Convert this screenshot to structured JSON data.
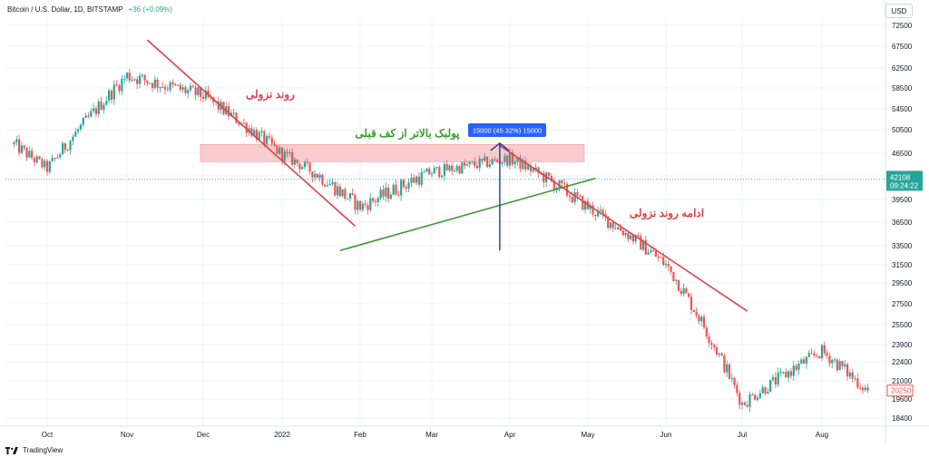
{
  "header": {
    "symbol": "Bitcoin / U.S. Dollar, 1D, BITSTAMP",
    "change": "+36 (+0.09%)"
  },
  "currency_label": "USD",
  "footer": {
    "brand": "TradingView"
  },
  "colors": {
    "up": "#26a69a",
    "down": "#ef5350",
    "trend_down": "#e0404a",
    "trend_up": "#3b9a2e",
    "zone": "#f4a3a8",
    "measure": "#1a3f8f",
    "price_badge": "#2962ff"
  },
  "chart_data": {
    "type": "candlestick",
    "x": [
      "2021-09-18",
      "2021-10-01",
      "2021-11-01",
      "2021-12-01",
      "2022-01-01",
      "2022-02-01",
      "2022-03-01",
      "2022-04-01",
      "2022-05-01",
      "2022-06-01",
      "2022-07-01",
      "2022-08-01",
      "2022-08-19"
    ],
    "close": [
      48000,
      43800,
      61000,
      57000,
      46300,
      38500,
      43200,
      45500,
      38500,
      31500,
      19300,
      23300,
      20250
    ],
    "y_ticks": [
      72500,
      67500,
      62500,
      58500,
      54500,
      50500,
      46500,
      42500,
      39500,
      36500,
      33500,
      31500,
      29500,
      27500,
      25500,
      23900,
      22400,
      21000,
      19600,
      18400
    ],
    "ylim": [
      17000,
      75000
    ],
    "x_labels": [
      "Oct",
      "Nov",
      "Dec",
      "2022",
      "Feb",
      "Mar",
      "Apr",
      "May",
      "Jun",
      "Jul",
      "Aug"
    ],
    "current_price": {
      "price": "42108",
      "time": "09:24:22"
    },
    "last_price": "20250",
    "annotations": [
      {
        "text": "روند نزولی",
        "color": "#e0404a"
      },
      {
        "text": "پولبک بالاتر از کف قبلی",
        "color": "#3b9a2e"
      },
      {
        "text": "ادامه روند نزولی",
        "color": "#e0404a"
      },
      {
        "text": "15000 (45.32%) 15000",
        "color": "#ffffff"
      }
    ]
  }
}
